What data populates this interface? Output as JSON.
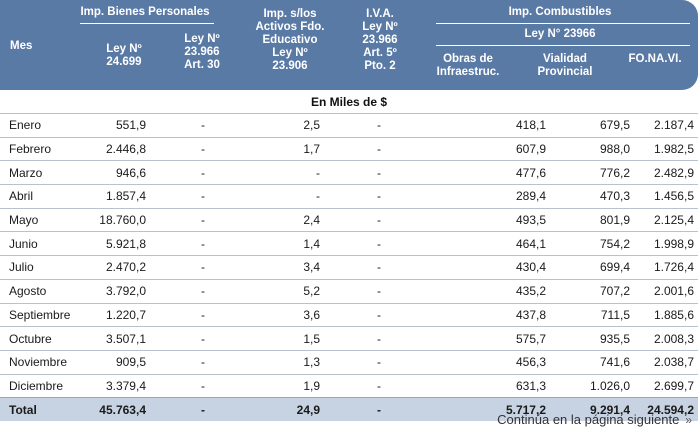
{
  "header": {
    "mes": "Mes",
    "bienes_personales": "Imp. Bienes Personales",
    "ley_24699": [
      "Ley Nº",
      "24.699"
    ],
    "ley_23966_art30": [
      "Ley Nº",
      "23.966",
      "Art. 30"
    ],
    "activos": [
      "Imp. s/los",
      "Activos Fdo.",
      "Educativo",
      "Ley Nº",
      "23.906"
    ],
    "iva": [
      "I.V.A.",
      "Ley Nº",
      "23.966",
      "Art. 5º",
      "Pto. 2"
    ],
    "combustibles": "Imp. Combustibles",
    "ley_23966": "Ley N° 23966",
    "obras": [
      "Obras de",
      "Infraestruc."
    ],
    "vialidad": [
      "Vialidad",
      "Provincial"
    ],
    "fonavi": "FO.NA.VI."
  },
  "unit": "En Miles de $",
  "rows": [
    {
      "mes": "Enero",
      "bp": "551,9",
      "bp30": "-",
      "act": "2,5",
      "iva": "-",
      "obras": "418,1",
      "vial": "679,5",
      "fonavi": "2.187,4"
    },
    {
      "mes": "Febrero",
      "bp": "2.446,8",
      "bp30": "-",
      "act": "1,7",
      "iva": "-",
      "obras": "607,9",
      "vial": "988,0",
      "fonavi": "1.982,5"
    },
    {
      "mes": "Marzo",
      "bp": "946,6",
      "bp30": "-",
      "act": "-",
      "iva": "-",
      "obras": "477,6",
      "vial": "776,2",
      "fonavi": "2.482,9"
    },
    {
      "mes": "Abril",
      "bp": "1.857,4",
      "bp30": "-",
      "act": "-",
      "iva": "-",
      "obras": "289,4",
      "vial": "470,3",
      "fonavi": "1.456,5"
    },
    {
      "mes": "Mayo",
      "bp": "18.760,0",
      "bp30": "-",
      "act": "2,4",
      "iva": "-",
      "obras": "493,5",
      "vial": "801,9",
      "fonavi": "2.125,4"
    },
    {
      "mes": "Junio",
      "bp": "5.921,8",
      "bp30": "-",
      "act": "1,4",
      "iva": "-",
      "obras": "464,1",
      "vial": "754,2",
      "fonavi": "1.998,9"
    },
    {
      "mes": "Julio",
      "bp": "2.470,2",
      "bp30": "-",
      "act": "3,4",
      "iva": "-",
      "obras": "430,4",
      "vial": "699,4",
      "fonavi": "1.726,4"
    },
    {
      "mes": "Agosto",
      "bp": "3.792,0",
      "bp30": "-",
      "act": "5,2",
      "iva": "-",
      "obras": "435,2",
      "vial": "707,2",
      "fonavi": "2.001,6"
    },
    {
      "mes": "Septiembre",
      "bp": "1.220,7",
      "bp30": "-",
      "act": "3,6",
      "iva": "-",
      "obras": "437,8",
      "vial": "711,5",
      "fonavi": "1.885,6"
    },
    {
      "mes": "Octubre",
      "bp": "3.507,1",
      "bp30": "-",
      "act": "1,5",
      "iva": "-",
      "obras": "575,7",
      "vial": "935,5",
      "fonavi": "2.008,3"
    },
    {
      "mes": "Noviembre",
      "bp": "909,5",
      "bp30": "-",
      "act": "1,3",
      "iva": "-",
      "obras": "456,3",
      "vial": "741,6",
      "fonavi": "2.038,7"
    },
    {
      "mes": "Diciembre",
      "bp": "3.379,4",
      "bp30": "-",
      "act": "1,9",
      "iva": "-",
      "obras": "631,3",
      "vial": "1.026,0",
      "fonavi": "2.699,7"
    }
  ],
  "total": {
    "mes": "Total",
    "bp": "45.763,4",
    "bp30": "-",
    "act": "24,9",
    "iva": "-",
    "obras": "5.717,2",
    "vial": "9.291,4",
    "fonavi": "24.594,2"
  },
  "footer": {
    "text": "Continúa en la página siguiente",
    "icon": "double-chevron-right-icon"
  },
  "colors": {
    "header_bg": "#5a7aa6",
    "total_bg": "#c7d3e2"
  }
}
